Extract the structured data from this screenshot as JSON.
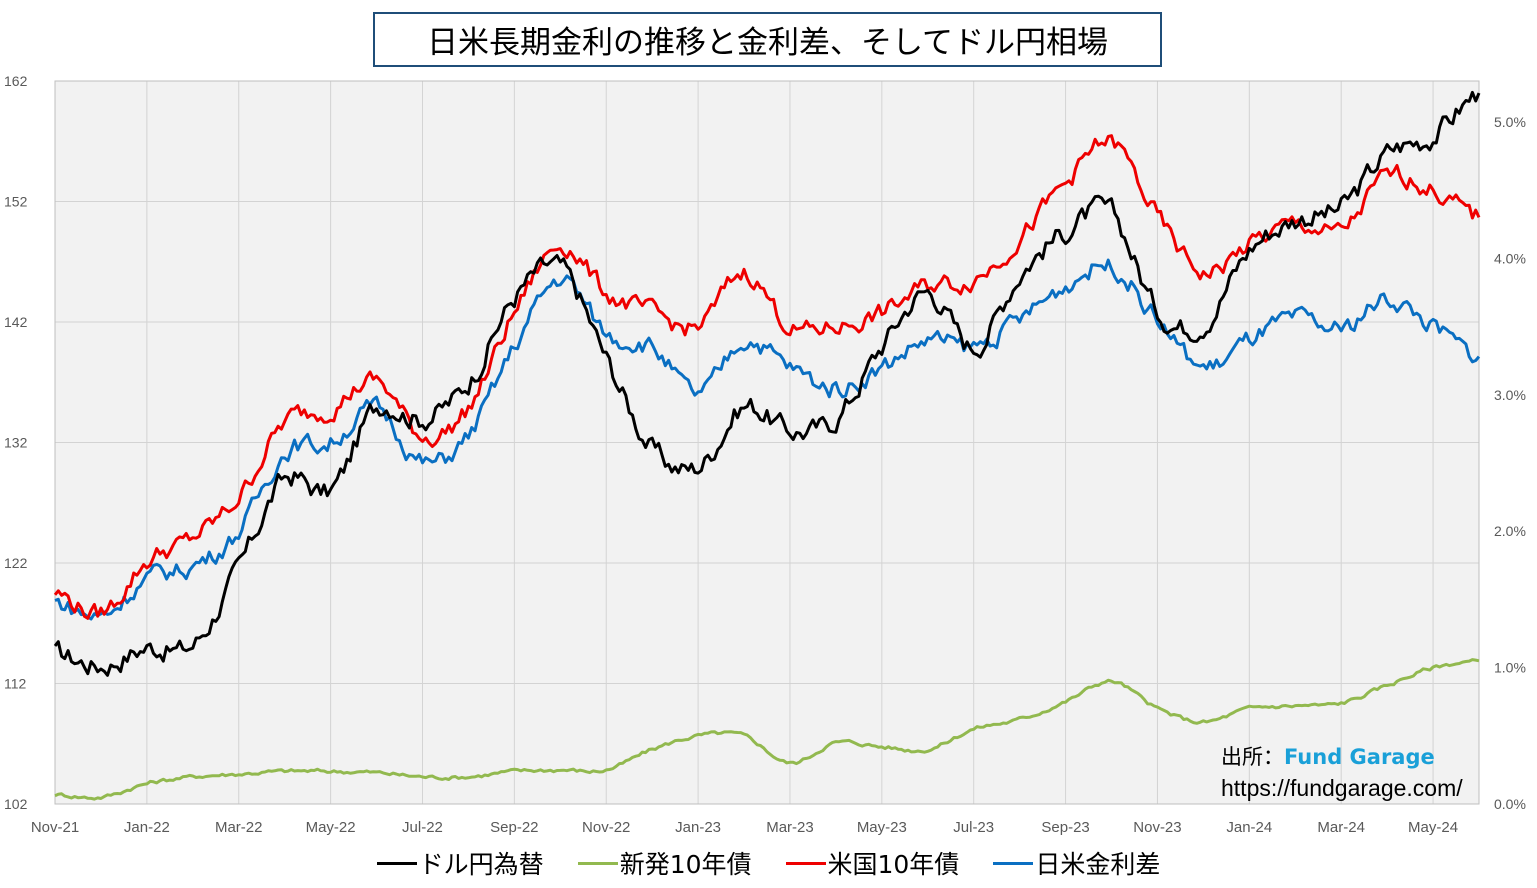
{
  "title": "日米長期金利の推移と金利差、そしてドル円相場",
  "source": {
    "label": "出所：",
    "brand": "Fund Garage",
    "url": "https://fundgarage.com/"
  },
  "colors": {
    "usdjpy": "#000000",
    "jgb10": "#92b94f",
    "ust10": "#ee0000",
    "spread": "#0a6fc2",
    "plot_bg": "#f2f2f2",
    "grid": "#d3d3d3",
    "title_border": "#1f4e79",
    "source_brand": "#1aa0d8"
  },
  "chart_data": {
    "type": "line",
    "x_tick_labels": [
      "Nov-21",
      "Jan-22",
      "Mar-22",
      "May-22",
      "Jul-22",
      "Sep-22",
      "Nov-22",
      "Jan-23",
      "Mar-23",
      "May-23",
      "Jul-23",
      "Sep-23",
      "Nov-23",
      "Jan-24",
      "Mar-24",
      "May-24"
    ],
    "x": [
      "2021-11",
      "2021-12",
      "2022-01",
      "2022-02",
      "2022-03",
      "2022-04",
      "2022-05",
      "2022-06",
      "2022-07",
      "2022-08",
      "2022-09",
      "2022-10",
      "2022-11",
      "2022-12",
      "2023-01",
      "2023-02",
      "2023-03",
      "2023-04",
      "2023-05",
      "2023-06",
      "2023-07",
      "2023-08",
      "2023-09",
      "2023-10",
      "2023-11",
      "2023-12",
      "2024-01",
      "2024-02",
      "2024-03",
      "2024-04",
      "2024-05",
      "2024-06"
    ],
    "y_left": {
      "range": [
        102,
        162
      ],
      "ticks": [
        "162",
        "152",
        "142",
        "132",
        "122",
        "112",
        "102"
      ]
    },
    "y_right": {
      "range": [
        0.0,
        5.3
      ],
      "ticks": [
        "5.0%",
        "4.0%",
        "3.0%",
        "2.0%",
        "1.0%",
        "0.0%"
      ]
    },
    "grid": true,
    "legend_position": "bottom",
    "series": [
      {
        "name": "ドル円為替",
        "axis": "left",
        "color_key": "usdjpy",
        "values": [
          114.5,
          113.5,
          115,
          115.2,
          121.5,
          129,
          128,
          135,
          134,
          137,
          144,
          146.5,
          139,
          131.5,
          130,
          135,
          133,
          134,
          140,
          144.5,
          140,
          146,
          149.5,
          151,
          143,
          142,
          148,
          150.5,
          151.5,
          156,
          157.5,
          161
        ]
      },
      {
        "name": "新発10年債",
        "axis": "right",
        "color_key": "jgb10",
        "values": [
          0.07,
          0.05,
          0.15,
          0.2,
          0.22,
          0.24,
          0.24,
          0.23,
          0.2,
          0.2,
          0.24,
          0.25,
          0.25,
          0.4,
          0.5,
          0.5,
          0.3,
          0.45,
          0.42,
          0.4,
          0.55,
          0.62,
          0.75,
          0.9,
          0.7,
          0.6,
          0.7,
          0.72,
          0.74,
          0.87,
          1.0,
          1.05
        ]
      },
      {
        "name": "米国10年債",
        "axis": "right",
        "color_key": "ust10",
        "values": [
          1.55,
          1.4,
          1.78,
          1.95,
          2.25,
          2.8,
          2.9,
          3.1,
          2.7,
          2.9,
          3.6,
          4.1,
          3.75,
          3.6,
          3.5,
          3.9,
          3.5,
          3.5,
          3.6,
          3.8,
          3.85,
          4.15,
          4.55,
          4.85,
          4.3,
          3.9,
          4.1,
          4.25,
          4.2,
          4.6,
          4.5,
          4.3
        ]
      },
      {
        "name": "日米金利差",
        "axis": "right",
        "color_key": "spread",
        "values": [
          1.48,
          1.38,
          1.65,
          1.75,
          2.0,
          2.58,
          2.65,
          2.9,
          2.5,
          2.7,
          3.35,
          3.85,
          3.45,
          3.35,
          3.0,
          3.4,
          3.2,
          3.05,
          3.2,
          3.4,
          3.35,
          3.55,
          3.8,
          3.95,
          3.55,
          3.2,
          3.4,
          3.55,
          3.48,
          3.7,
          3.5,
          3.28
        ]
      }
    ]
  }
}
